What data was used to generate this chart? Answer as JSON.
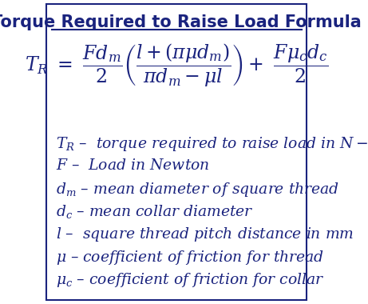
{
  "title": "Torque Required to Raise Load Formula",
  "text_color": "#1a237e",
  "bg_color": "#ffffff",
  "title_fontsize": 15,
  "formula_fontsize": 17,
  "desc_fontsize": 13.5,
  "border_color": "#1a237e",
  "descriptions": [
    "$T_R$ –  torque required to raise load in $N-m$",
    "$F$ –  Load in Newton",
    "$d_m$ – mean diameter of square thread",
    "$d_c$ – mean collar diameter",
    "$l$ –  square thread pitch distance in mm",
    "$\\mu$ – coefficient of friction for thread",
    "$\\mu_c$ – coefficient of friction for collar"
  ]
}
